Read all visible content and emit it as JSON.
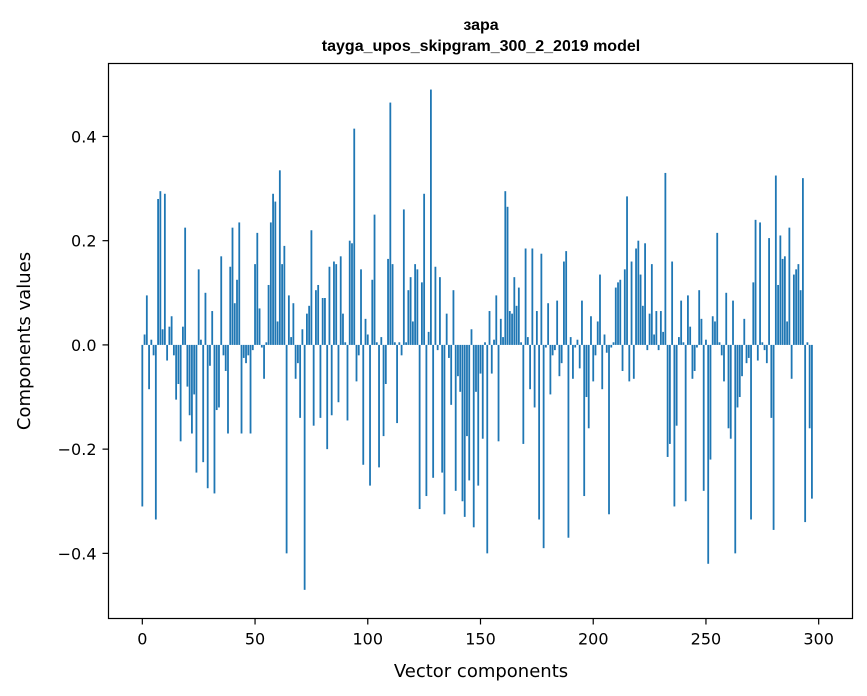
{
  "chart_data": {
    "type": "bar",
    "title": "зара",
    "subtitle": "tayga_upos_skipgram_300_2_2019 model",
    "xlabel": "Vector components",
    "ylabel": "Components values",
    "xlim": [
      -15,
      315
    ],
    "ylim": [
      -0.525,
      0.54
    ],
    "xticks": [
      0,
      50,
      100,
      150,
      200,
      250,
      300
    ],
    "xtick_labels": [
      "0",
      "50",
      "100",
      "150",
      "200",
      "250",
      "300"
    ],
    "yticks": [
      -0.4,
      -0.2,
      0.0,
      0.2,
      0.4
    ],
    "ytick_labels": [
      "−0.4",
      "−0.2",
      "0.0",
      "0.2",
      "0.4"
    ],
    "bar_color": "#1f77b4",
    "grid": false,
    "values": [
      -0.31,
      0.02,
      0.095,
      -0.085,
      0.01,
      -0.02,
      -0.335,
      0.28,
      0.295,
      0.03,
      0.29,
      -0.03,
      0.035,
      0.055,
      -0.02,
      -0.105,
      -0.075,
      -0.185,
      0.035,
      0.225,
      -0.08,
      -0.135,
      -0.17,
      -0.095,
      -0.245,
      0.145,
      0.01,
      -0.225,
      0.1,
      -0.275,
      -0.04,
      0.065,
      -0.285,
      -0.125,
      -0.12,
      0.17,
      -0.02,
      -0.05,
      -0.17,
      0.15,
      0.225,
      0.08,
      0.125,
      0.235,
      -0.17,
      -0.025,
      -0.035,
      -0.02,
      -0.17,
      -0.01,
      0.155,
      0.215,
      0.07,
      -0.005,
      -0.065,
      0.005,
      0.115,
      0.235,
      0.29,
      0.275,
      0.045,
      0.335,
      0.155,
      0.19,
      -0.4,
      0.095,
      0.015,
      0.08,
      -0.065,
      -0.035,
      -0.14,
      0.03,
      -0.47,
      0.06,
      0.075,
      0.22,
      -0.155,
      0.105,
      0.115,
      -0.14,
      0.09,
      0.09,
      -0.2,
      0.15,
      -0.135,
      0.16,
      0.155,
      -0.11,
      0.17,
      0.06,
      0.005,
      -0.145,
      0.2,
      0.195,
      0.415,
      -0.07,
      -0.02,
      0.145,
      -0.23,
      0.05,
      0.02,
      -0.27,
      0.125,
      0.25,
      0.005,
      -0.235,
      0.015,
      -0.175,
      -0.075,
      0.165,
      0.465,
      0.155,
      0.005,
      -0.15,
      0.005,
      -0.02,
      0.26,
      0.005,
      0.105,
      0.13,
      0.045,
      0.155,
      0.145,
      -0.315,
      0.12,
      0.29,
      -0.29,
      0.025,
      0.49,
      -0.255,
      0.15,
      -0.01,
      0.13,
      -0.245,
      -0.325,
      0.06,
      -0.025,
      -0.115,
      0.105,
      -0.28,
      -0.06,
      -0.09,
      -0.3,
      -0.33,
      -0.175,
      -0.26,
      0.03,
      -0.35,
      -0.09,
      -0.27,
      -0.055,
      -0.18,
      0.005,
      -0.4,
      0.065,
      -0.055,
      0.01,
      0.095,
      -0.185,
      0.05,
      0.015,
      0.295,
      0.265,
      0.065,
      0.06,
      0.13,
      0.075,
      0.11,
      0.005,
      -0.19,
      0.185,
      0.015,
      -0.085,
      0.185,
      -0.12,
      0.065,
      -0.335,
      0.175,
      -0.39,
      -0.005,
      0.08,
      -0.095,
      -0.02,
      -0.01,
      0.085,
      -0.06,
      -0.035,
      0.16,
      0.18,
      -0.37,
      0.015,
      -0.065,
      -0.005,
      0.01,
      -0.045,
      0.085,
      -0.29,
      -0.1,
      -0.16,
      0.055,
      -0.07,
      -0.02,
      0.045,
      0.135,
      -0.085,
      0.02,
      -0.015,
      -0.325,
      -0.005,
      0.005,
      0.11,
      0.12,
      0.125,
      -0.05,
      0.145,
      0.285,
      -0.07,
      0.16,
      -0.065,
      0.185,
      0.2,
      0.135,
      0.075,
      0.195,
      -0.01,
      0.06,
      0.155,
      0.02,
      0.065,
      -0.01,
      0.065,
      0.025,
      0.33,
      -0.215,
      -0.19,
      0.16,
      -0.31,
      -0.155,
      0.015,
      0.085,
      0.005,
      -0.3,
      0.095,
      0.035,
      -0.065,
      -0.05,
      -0.005,
      0.105,
      0.05,
      -0.28,
      0.01,
      -0.42,
      -0.22,
      0.055,
      0.045,
      0.215,
      0.005,
      -0.02,
      -0.07,
      0.1,
      -0.16,
      -0.18,
      0.085,
      -0.4,
      -0.12,
      -0.1,
      -0.06,
      0.05,
      -0.035,
      -0.025,
      -0.335,
      0.12,
      0.24,
      -0.03,
      0.235,
      0.005,
      -0.01,
      -0.035,
      0.205,
      -0.14,
      -0.355,
      0.325,
      0.115,
      0.21,
      0.165,
      0.17,
      0.045,
      0.225,
      -0.065,
      0.135,
      0.145,
      0.155,
      0.105,
      0.32,
      -0.34,
      0.005,
      -0.16,
      -0.295
    ]
  }
}
